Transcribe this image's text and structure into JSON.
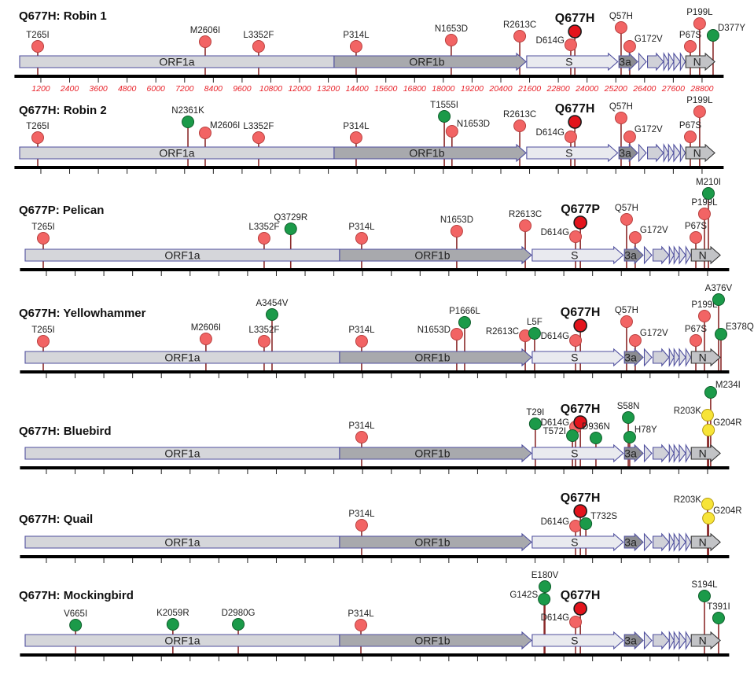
{
  "colors": {
    "common": "#f26464",
    "common_stroke": "#b8403f",
    "key": "#e3141c",
    "key_stroke": "#1a1a1a",
    "novel": "#1b9a49",
    "novel_stroke": "#0e5e2b",
    "yellow": "#f7e438",
    "yellow_stroke": "#b39a10",
    "stem": "#8b2b2b"
  },
  "axis": {
    "unit": "nt",
    "ticks": [
      1200,
      2400,
      3600,
      4800,
      6000,
      7200,
      8400,
      9600,
      10800,
      12000,
      13200,
      14400,
      15600,
      16800,
      18000,
      19200,
      20400,
      21600,
      22800,
      24000,
      25200,
      26400,
      27600,
      28800
    ]
  },
  "genes": [
    {
      "label": "ORF1a",
      "start": 315,
      "end": 13440,
      "shape": "box",
      "fill": "#d5d6da"
    },
    {
      "label": "ORF1b",
      "start": 13440,
      "end": 21450,
      "shape": "arrow",
      "fill": "#a8a9ad"
    },
    {
      "label": "S",
      "start": 21480,
      "end": 25280,
      "shape": "arrow",
      "fill": "#e9eaef"
    },
    {
      "label": "3a",
      "start": 25330,
      "end": 26110,
      "shape": "arrow",
      "fill": "#8c8d93"
    },
    {
      "label": "",
      "start": 26160,
      "end": 26470,
      "shape": "tri",
      "fill": "#dcdde4"
    },
    {
      "label": "",
      "start": 26523,
      "end": 27191,
      "shape": "arrow",
      "fill": "#d0d1d8"
    },
    {
      "label": "",
      "start": 27202,
      "end": 27400,
      "shape": "tri",
      "fill": "#dcdde4"
    },
    {
      "label": "",
      "start": 27400,
      "end": 27620,
      "shape": "tri",
      "fill": "#dcdde4"
    },
    {
      "label": "",
      "start": 27620,
      "end": 27887,
      "shape": "tri",
      "fill": "#dcdde4"
    },
    {
      "label": "",
      "start": 27894,
      "end": 28100,
      "shape": "tri",
      "fill": "#dcdde4"
    },
    {
      "label": "N",
      "start": 28120,
      "end": 29330,
      "shape": "arrow",
      "fill": "#c2c3c6"
    }
  ],
  "panels": [
    {
      "title": "Q677H: Robin 1",
      "show_tick_labels": true,
      "mutations": [
        {
          "label": "T265I",
          "pos": 1070,
          "type": "common"
        },
        {
          "label": "M2606I",
          "pos": 8060,
          "type": "common"
        },
        {
          "label": "L3352F",
          "pos": 10290,
          "type": "common"
        },
        {
          "label": "P314L",
          "pos": 14360,
          "type": "common"
        },
        {
          "label": "N1653D",
          "pos": 18330,
          "type": "common"
        },
        {
          "label": "R2613C",
          "pos": 21190,
          "type": "common"
        },
        {
          "label": "D614G",
          "pos": 23320,
          "type": "common"
        },
        {
          "label": "Q677H",
          "pos": 23490,
          "type": "key"
        },
        {
          "label": "Q57H",
          "pos": 25420,
          "type": "common"
        },
        {
          "label": "G172V",
          "pos": 25780,
          "type": "common"
        },
        {
          "label": "P67S",
          "pos": 28310,
          "type": "common"
        },
        {
          "label": "P199L",
          "pos": 28700,
          "type": "common"
        },
        {
          "label": "D377Y",
          "pos": 29260,
          "type": "novel"
        }
      ]
    },
    {
      "title": "Q677H: Robin 2",
      "show_tick_labels": false,
      "mutations": [
        {
          "label": "T265I",
          "pos": 1070,
          "type": "common"
        },
        {
          "label": "N2361K",
          "pos": 7340,
          "type": "novel"
        },
        {
          "label": "M2606I",
          "pos": 8060,
          "type": "common"
        },
        {
          "label": "L3352F",
          "pos": 10290,
          "type": "common"
        },
        {
          "label": "P314L",
          "pos": 14360,
          "type": "common"
        },
        {
          "label": "T1555I",
          "pos": 18040,
          "type": "novel"
        },
        {
          "label": "N1653D",
          "pos": 18360,
          "type": "common"
        },
        {
          "label": "R2613C",
          "pos": 21190,
          "type": "common"
        },
        {
          "label": "D614G",
          "pos": 23320,
          "type": "common"
        },
        {
          "label": "Q677H",
          "pos": 23490,
          "type": "key"
        },
        {
          "label": "Q57H",
          "pos": 25420,
          "type": "common"
        },
        {
          "label": "G172V",
          "pos": 25780,
          "type": "common"
        },
        {
          "label": "P67S",
          "pos": 28310,
          "type": "common"
        },
        {
          "label": "P199L",
          "pos": 28700,
          "type": "common"
        }
      ]
    },
    {
      "title": "Q677P: Pelican",
      "show_tick_labels": false,
      "mutations": [
        {
          "label": "T265I",
          "pos": 1070,
          "type": "common"
        },
        {
          "label": "L3352F",
          "pos": 10290,
          "type": "common"
        },
        {
          "label": "Q3729R",
          "pos": 11400,
          "type": "novel"
        },
        {
          "label": "P314L",
          "pos": 14360,
          "type": "common"
        },
        {
          "label": "N1653D",
          "pos": 18330,
          "type": "common"
        },
        {
          "label": "R2613C",
          "pos": 21190,
          "type": "common"
        },
        {
          "label": "D614G",
          "pos": 23290,
          "type": "common"
        },
        {
          "label": "Q677P",
          "pos": 23490,
          "type": "key"
        },
        {
          "label": "Q57H",
          "pos": 25420,
          "type": "common"
        },
        {
          "label": "G172V",
          "pos": 25780,
          "type": "common"
        },
        {
          "label": "P67S",
          "pos": 28310,
          "type": "common"
        },
        {
          "label": "P199L",
          "pos": 28670,
          "type": "common"
        },
        {
          "label": "M210I",
          "pos": 28835,
          "type": "novel"
        }
      ]
    },
    {
      "title": "Q677H: Yellowhammer",
      "show_tick_labels": false,
      "mutations": [
        {
          "label": "T265I",
          "pos": 1070,
          "type": "common"
        },
        {
          "label": "M2606I",
          "pos": 7860,
          "type": "common"
        },
        {
          "label": "L3352F",
          "pos": 10290,
          "type": "common"
        },
        {
          "label": "A3454V",
          "pos": 10620,
          "type": "novel"
        },
        {
          "label": "P314L",
          "pos": 14360,
          "type": "common"
        },
        {
          "label": "N1653D",
          "pos": 18330,
          "type": "common"
        },
        {
          "label": "P1666L",
          "pos": 18660,
          "type": "novel"
        },
        {
          "label": "R2613C",
          "pos": 21190,
          "type": "common"
        },
        {
          "label": "L5F",
          "pos": 21580,
          "type": "novel"
        },
        {
          "label": "D614G",
          "pos": 23290,
          "type": "common"
        },
        {
          "label": "Q677H",
          "pos": 23490,
          "type": "key"
        },
        {
          "label": "Q57H",
          "pos": 25420,
          "type": "common"
        },
        {
          "label": "G172V",
          "pos": 25780,
          "type": "common"
        },
        {
          "label": "P67S",
          "pos": 28310,
          "type": "common"
        },
        {
          "label": "P199L",
          "pos": 28670,
          "type": "common"
        },
        {
          "label": "A376V",
          "pos": 29260,
          "type": "novel"
        },
        {
          "label": "E378Q",
          "pos": 29360,
          "type": "novel"
        }
      ]
    },
    {
      "title": "Q677H: Bluebird",
      "show_tick_labels": false,
      "mutations": [
        {
          "label": "P314L",
          "pos": 14360,
          "type": "common"
        },
        {
          "label": "T29I",
          "pos": 21610,
          "type": "novel"
        },
        {
          "label": "D614G",
          "pos": 23290,
          "type": "common"
        },
        {
          "label": "T572I",
          "pos": 23160,
          "type": "novel"
        },
        {
          "label": "Q677H",
          "pos": 23490,
          "type": "key"
        },
        {
          "label": "D936N",
          "pos": 24140,
          "type": "novel"
        },
        {
          "label": "S58N",
          "pos": 25490,
          "type": "novel"
        },
        {
          "label": "H78Y",
          "pos": 25550,
          "type": "novel"
        },
        {
          "label": "R203K",
          "pos": 28800,
          "type": "yellow"
        },
        {
          "label": "G204R",
          "pos": 28840,
          "type": "yellow"
        },
        {
          "label": "M234I",
          "pos": 28930,
          "type": "novel"
        }
      ]
    },
    {
      "title": "Q677H: Quail",
      "show_tick_labels": false,
      "mutations": [
        {
          "label": "P314L",
          "pos": 14360,
          "type": "common"
        },
        {
          "label": "D614G",
          "pos": 23290,
          "type": "common"
        },
        {
          "label": "Q677H",
          "pos": 23490,
          "type": "key"
        },
        {
          "label": "T732S",
          "pos": 23720,
          "type": "novel"
        },
        {
          "label": "R203K",
          "pos": 28800,
          "type": "yellow"
        },
        {
          "label": "G204R",
          "pos": 28840,
          "type": "yellow"
        }
      ]
    },
    {
      "title": "Q677H: Mockingbird",
      "show_tick_labels": false,
      "mutations": [
        {
          "label": "V665I",
          "pos": 2420,
          "type": "novel"
        },
        {
          "label": "K2059R",
          "pos": 6480,
          "type": "novel"
        },
        {
          "label": "D2980G",
          "pos": 9210,
          "type": "novel"
        },
        {
          "label": "P314L",
          "pos": 14330,
          "type": "common"
        },
        {
          "label": "E180V",
          "pos": 22010,
          "type": "novel"
        },
        {
          "label": "G142S",
          "pos": 21980,
          "type": "novel"
        },
        {
          "label": "D614G",
          "pos": 23290,
          "type": "common"
        },
        {
          "label": "Q677H",
          "pos": 23490,
          "type": "key"
        },
        {
          "label": "S194L",
          "pos": 28670,
          "type": "novel"
        },
        {
          "label": "T391I",
          "pos": 29260,
          "type": "novel"
        }
      ]
    }
  ]
}
